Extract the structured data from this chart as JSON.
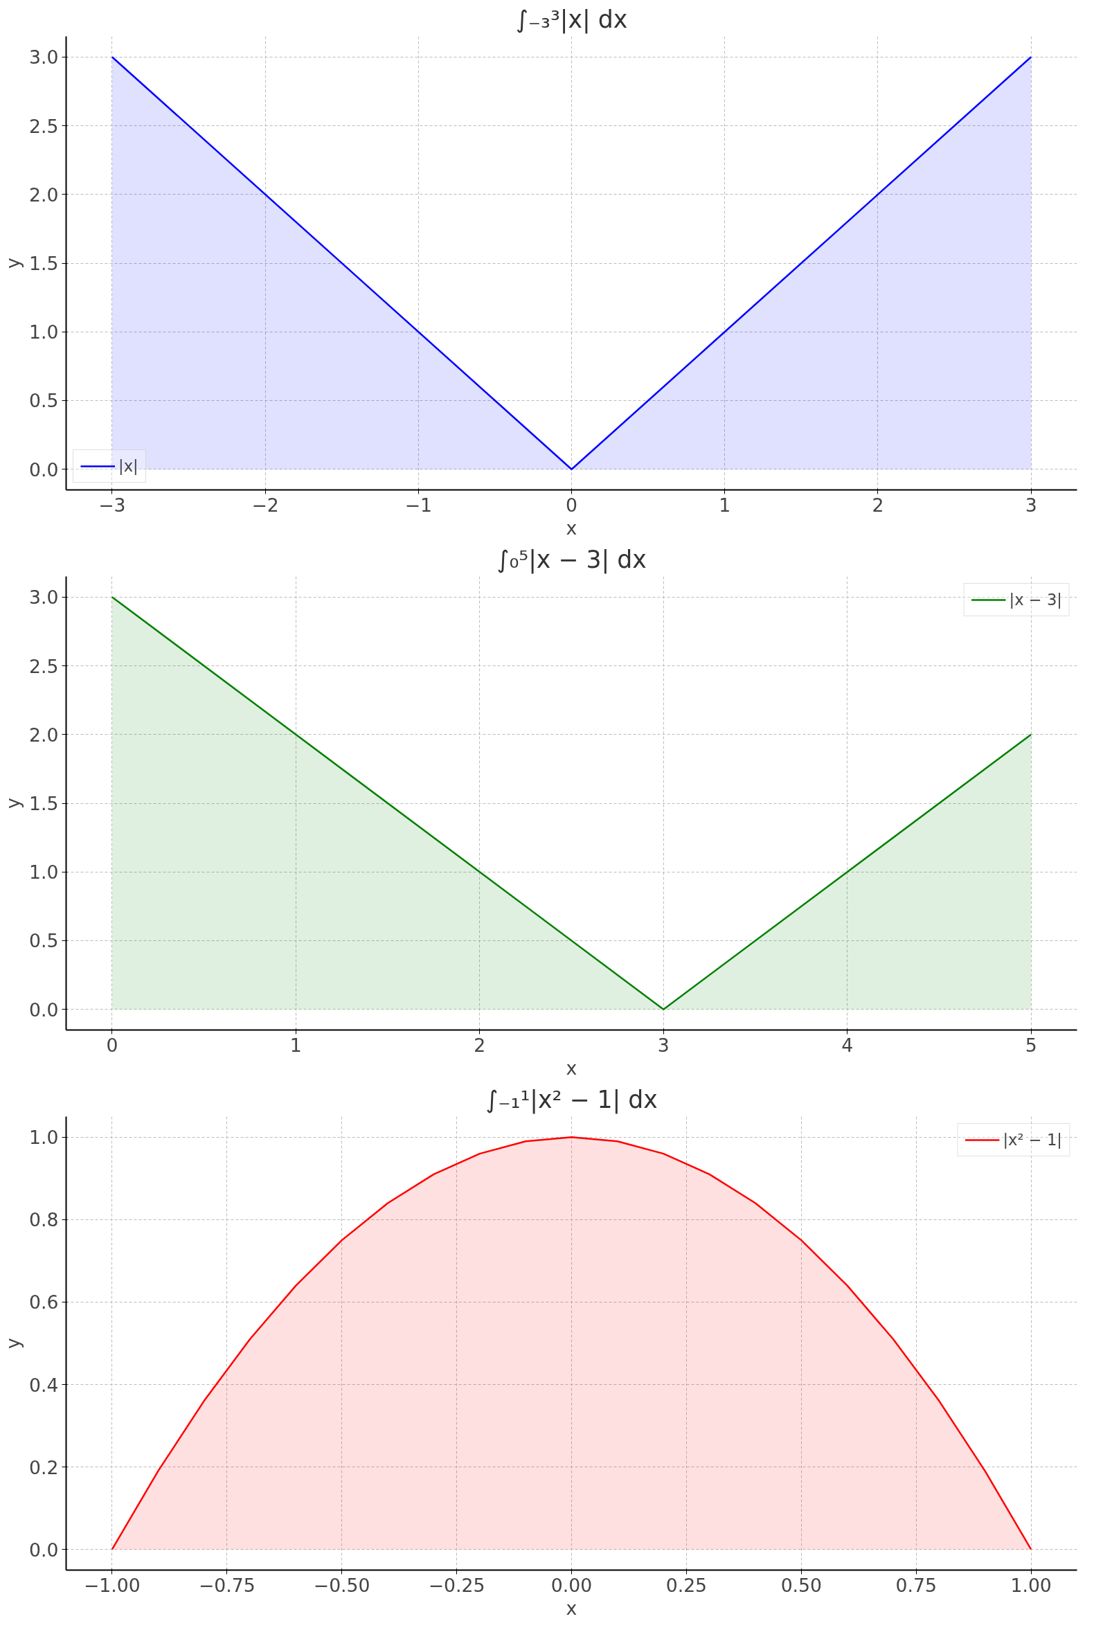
{
  "chart_data": [
    {
      "type": "area",
      "title": "∫₋₃³|x| dx",
      "xlabel": "x",
      "ylabel": "y",
      "grid": true,
      "legend": "bottom left",
      "line_style": "solid",
      "xlim": [
        -3.3,
        3.3
      ],
      "ylim": [
        -0.15,
        3.15
      ],
      "xticks": [
        {
          "value": -3,
          "label": "−3"
        },
        {
          "value": -2,
          "label": "−2"
        },
        {
          "value": -1,
          "label": "−1"
        },
        0,
        1,
        2,
        3
      ],
      "yticks": [
        {
          "value": 0,
          "label": "0.0"
        },
        {
          "value": 0.5,
          "label": "0.5"
        },
        {
          "value": 1,
          "label": "1.0"
        },
        {
          "value": 1.5,
          "label": "1.5"
        },
        {
          "value": 2,
          "label": "2.0"
        },
        {
          "value": 2.5,
          "label": "2.5"
        },
        {
          "value": 3,
          "label": "3.0"
        }
      ],
      "series": [
        {
          "name": "|x|",
          "color": "#0000ff",
          "x": [
            -3,
            0,
            3
          ],
          "values": [
            3,
            0,
            3
          ]
        }
      ]
    },
    {
      "type": "area",
      "title": "∫₀⁵|x − 3| dx",
      "xlabel": "x",
      "ylabel": "y",
      "grid": true,
      "legend": "top right",
      "line_style": "solid",
      "xlim": [
        -0.25,
        5.25
      ],
      "ylim": [
        -0.15,
        3.15
      ],
      "xticks": [
        0,
        1,
        2,
        3,
        4,
        5
      ],
      "yticks": [
        {
          "value": 0,
          "label": "0.0"
        },
        {
          "value": 0.5,
          "label": "0.5"
        },
        {
          "value": 1,
          "label": "1.0"
        },
        {
          "value": 1.5,
          "label": "1.5"
        },
        {
          "value": 2,
          "label": "2.0"
        },
        {
          "value": 2.5,
          "label": "2.5"
        },
        {
          "value": 3,
          "label": "3.0"
        }
      ],
      "series": [
        {
          "name": "|x − 3|",
          "color": "#008000",
          "x": [
            0,
            3,
            5
          ],
          "values": [
            3,
            0,
            2
          ]
        }
      ]
    },
    {
      "type": "area",
      "title": "∫₋₁¹|x² − 1| dx",
      "xlabel": "x",
      "ylabel": "y",
      "grid": true,
      "legend": "top right",
      "line_style": "solid",
      "xlim": [
        -1.1,
        1.1
      ],
      "ylim": [
        -0.05,
        1.05
      ],
      "xticks": [
        {
          "value": -1,
          "label": "−1.00"
        },
        {
          "value": -0.75,
          "label": "−0.75"
        },
        {
          "value": -0.5,
          "label": "−0.50"
        },
        {
          "value": -0.25,
          "label": "−0.25"
        },
        {
          "value": 0,
          "label": "0.00"
        },
        {
          "value": 0.25,
          "label": "0.25"
        },
        {
          "value": 0.5,
          "label": "0.50"
        },
        {
          "value": 0.75,
          "label": "0.75"
        },
        {
          "value": 1,
          "label": "1.00"
        }
      ],
      "yticks": [
        {
          "value": 0,
          "label": "0.0"
        },
        {
          "value": 0.2,
          "label": "0.2"
        },
        {
          "value": 0.4,
          "label": "0.4"
        },
        {
          "value": 0.6,
          "label": "0.6"
        },
        {
          "value": 0.8,
          "label": "0.8"
        },
        {
          "value": 1,
          "label": "1.0"
        }
      ],
      "series": [
        {
          "name": "|x² − 1|",
          "color": "#ff0000",
          "x": [
            -1,
            -0.9,
            -0.8,
            -0.7,
            -0.6,
            -0.5,
            -0.4,
            -0.3,
            -0.2,
            -0.1,
            0,
            0.1,
            0.2,
            0.3,
            0.4,
            0.5,
            0.6,
            0.7,
            0.8,
            0.9,
            1
          ],
          "values": [
            0,
            0.19,
            0.36,
            0.51,
            0.64,
            0.75,
            0.84,
            0.91,
            0.96,
            0.99,
            1,
            0.99,
            0.96,
            0.91,
            0.84,
            0.75,
            0.64,
            0.51,
            0.36,
            0.19,
            0
          ]
        }
      ]
    }
  ]
}
